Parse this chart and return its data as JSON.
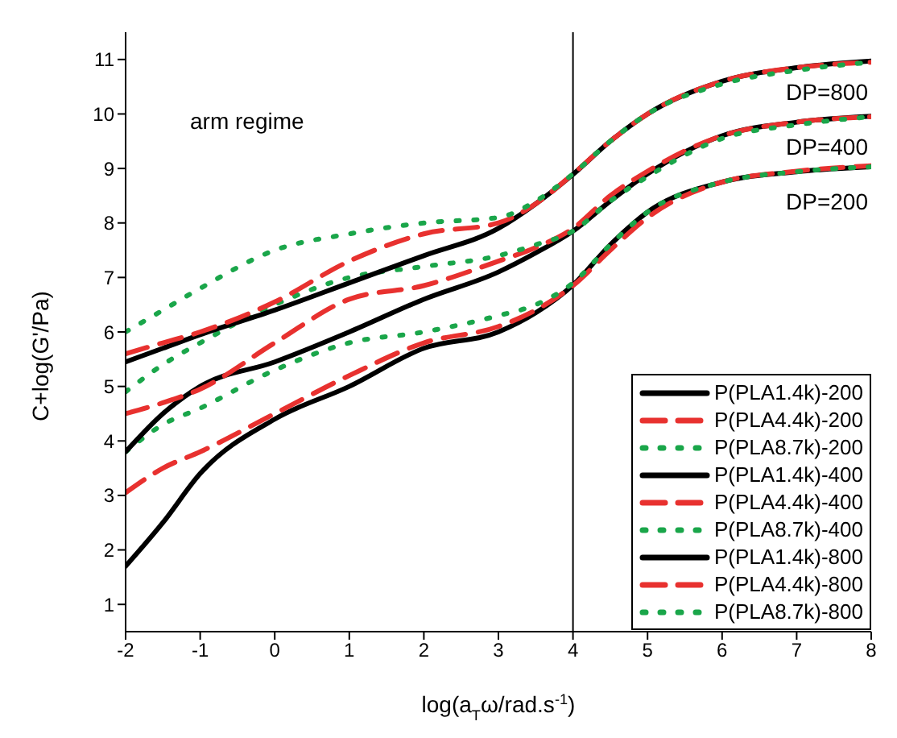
{
  "chart_data": {
    "type": "line",
    "xlabel": "log(a$_{T}$ω/rad.s$^{-1}$)",
    "ylabel": "C+log(G'/Pa)",
    "x": [
      -2,
      -1.5,
      -1,
      0,
      1,
      2,
      3,
      3.5,
      4,
      4.5,
      5,
      6,
      7,
      8
    ],
    "xlim": [
      -2,
      8
    ],
    "ylim": [
      0.5,
      11.5
    ],
    "xticks": [
      -2,
      -1,
      0,
      1,
      2,
      3,
      4,
      5,
      6,
      7,
      8
    ],
    "yticks": [
      1,
      2,
      3,
      4,
      5,
      6,
      7,
      8,
      9,
      10,
      11
    ],
    "grid": false,
    "legend": "bottom right",
    "marker": "none",
    "ref_lines": [
      {
        "axis": "x",
        "value": 4,
        "color": "#000000"
      }
    ],
    "annotations": [
      "arm regime",
      "DP=800",
      "DP=400",
      "DP=200"
    ],
    "series": [
      {
        "name": "P(PLA1.4k)-200",
        "color": "#000000",
        "line_style": "solid",
        "values": [
          1.7,
          2.5,
          3.4,
          4.4,
          5.0,
          5.7,
          6.0,
          6.35,
          6.86,
          7.6,
          8.2,
          8.75,
          8.94,
          9.03
        ]
      },
      {
        "name": "P(PLA4.4k)-200",
        "color": "#e8312f",
        "line_style": "dashed",
        "values": [
          3.05,
          3.5,
          3.8,
          4.5,
          5.2,
          5.8,
          6.1,
          6.4,
          6.85,
          7.5,
          8.1,
          8.75,
          8.95,
          9.05
        ]
      },
      {
        "name": "P(PLA8.7k)-200",
        "color": "#1aa64a",
        "line_style": "dotted",
        "values": [
          3.8,
          4.3,
          4.6,
          5.3,
          5.8,
          6.0,
          6.3,
          6.5,
          6.9,
          7.6,
          8.2,
          8.75,
          8.94,
          9.03
        ]
      },
      {
        "name": "P(PLA1.4k)-400",
        "color": "#000000",
        "line_style": "solid",
        "values": [
          3.8,
          4.5,
          5.0,
          5.45,
          6.0,
          6.6,
          7.1,
          7.45,
          7.85,
          8.4,
          8.9,
          9.6,
          9.85,
          9.96
        ]
      },
      {
        "name": "P(PLA4.4k)-400",
        "color": "#e8312f",
        "line_style": "dashed",
        "values": [
          4.5,
          4.7,
          4.95,
          5.8,
          6.6,
          6.85,
          7.3,
          7.55,
          7.9,
          8.5,
          8.95,
          9.6,
          9.85,
          9.95
        ]
      },
      {
        "name": "P(PLA8.7k)-400",
        "color": "#1aa64a",
        "line_style": "dotted",
        "values": [
          4.9,
          5.4,
          5.8,
          6.5,
          7.0,
          7.2,
          7.4,
          7.6,
          7.85,
          8.4,
          8.85,
          9.55,
          9.8,
          9.95
        ]
      },
      {
        "name": "P(PLA1.4k)-800",
        "color": "#000000",
        "line_style": "solid",
        "values": [
          5.45,
          5.7,
          5.95,
          6.4,
          6.9,
          7.4,
          7.9,
          8.35,
          8.89,
          9.5,
          10.0,
          10.6,
          10.85,
          10.97
        ]
      },
      {
        "name": "P(PLA4.4k)-800",
        "color": "#e8312f",
        "line_style": "dashed",
        "values": [
          5.6,
          5.8,
          6.0,
          6.55,
          7.3,
          7.8,
          8.0,
          8.35,
          8.9,
          9.5,
          10.0,
          10.6,
          10.85,
          10.95
        ]
      },
      {
        "name": "P(PLA8.7k)-800",
        "color": "#1aa64a",
        "line_style": "dotted",
        "values": [
          6.0,
          6.4,
          6.8,
          7.5,
          7.8,
          8.0,
          8.1,
          8.4,
          8.9,
          9.5,
          10.0,
          10.55,
          10.8,
          10.95
        ]
      }
    ]
  }
}
